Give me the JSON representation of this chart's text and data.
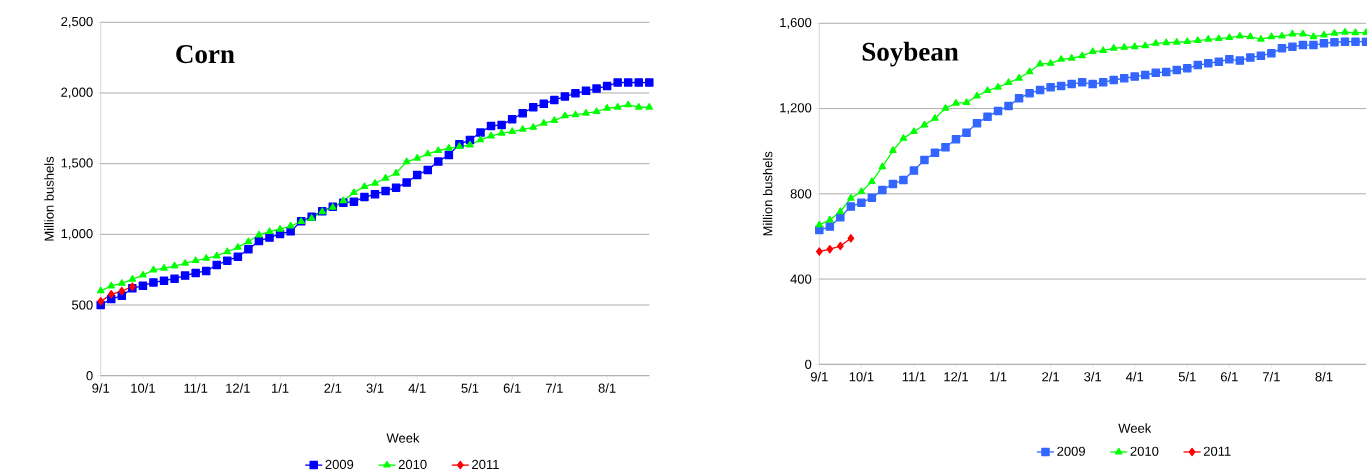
{
  "chart_data": [
    {
      "type": "line",
      "title": "Corn",
      "xlabel": "Week",
      "ylabel": "Million bushels",
      "categories": [
        "9/1",
        null,
        null,
        null,
        "10/1",
        null,
        null,
        null,
        null,
        "11/1",
        null,
        null,
        null,
        "12/1",
        null,
        null,
        null,
        "1/1",
        null,
        null,
        null,
        null,
        "2/1",
        null,
        null,
        null,
        "3/1",
        null,
        null,
        null,
        "4/1",
        null,
        null,
        null,
        null,
        "5/1",
        null,
        null,
        null,
        "6/1",
        null,
        null,
        null,
        "7/1",
        null,
        null,
        null,
        null,
        "8/1",
        null,
        null,
        null,
        null
      ],
      "ylim": [
        0,
        2500
      ],
      "yticks": [
        0,
        500,
        {
          "value": 1000,
          "label": "1,000"
        },
        {
          "value": 1500,
          "label": "1,500"
        },
        {
          "value": 2000,
          "label": "2,000"
        },
        {
          "value": 2500,
          "label": "2,500"
        }
      ],
      "grid": "y",
      "legend": "bottom",
      "series": [
        {
          "name": "2009",
          "color": "#0000ff",
          "marker": "square",
          "values": [
            500,
            542,
            566,
            618,
            637,
            660,
            672,
            686,
            708,
            727,
            741,
            783,
            814,
            842,
            894,
            953,
            977,
            1003,
            1021,
            1092,
            1125,
            1163,
            1196,
            1224,
            1231,
            1264,
            1283,
            1307,
            1330,
            1366,
            1420,
            1456,
            1515,
            1562,
            1637,
            1668,
            1720,
            1767,
            1774,
            1814,
            1857,
            1899,
            1923,
            1951,
            1975,
            1998,
            2015,
            2031,
            2050,
            2074,
            2074,
            2074,
            2074
          ]
        },
        {
          "name": "2010",
          "color": "#00ff00",
          "marker": "triangle",
          "values": [
            600,
            635,
            653,
            682,
            712,
            748,
            760,
            776,
            795,
            814,
            830,
            847,
            877,
            908,
            948,
            995,
            1019,
            1036,
            1059,
            1090,
            1113,
            1160,
            1191,
            1238,
            1295,
            1338,
            1361,
            1397,
            1432,
            1514,
            1538,
            1569,
            1592,
            1609,
            1621,
            1632,
            1668,
            1696,
            1715,
            1727,
            1743,
            1757,
            1786,
            1805,
            1838,
            1845,
            1857,
            1868,
            1892,
            1899,
            1916,
            1899,
            1899
          ]
        },
        {
          "name": "2011",
          "color": "#ff0000",
          "marker": "diamond",
          "values": [
            526,
            576,
            599,
            630,
            null,
            null,
            null,
            null,
            null,
            null,
            null,
            null,
            null,
            null,
            null,
            null,
            null,
            null,
            null,
            null,
            null,
            null,
            null,
            null,
            null,
            null,
            null,
            null,
            null,
            null,
            null,
            null,
            null,
            null,
            null,
            null,
            null,
            null,
            null,
            null,
            null,
            null,
            null,
            null,
            null,
            null,
            null,
            null,
            null,
            null,
            null,
            null,
            null
          ]
        }
      ]
    },
    {
      "type": "line",
      "title": "Soybean",
      "xlabel": "Week",
      "ylabel": "Million bushels",
      "categories": [
        "9/1",
        null,
        null,
        null,
        "10/1",
        null,
        null,
        null,
        null,
        "11/1",
        null,
        null,
        null,
        "12/1",
        null,
        null,
        null,
        "1/1",
        null,
        null,
        null,
        null,
        "2/1",
        null,
        null,
        null,
        "3/1",
        null,
        null,
        null,
        "4/1",
        null,
        null,
        null,
        null,
        "5/1",
        null,
        null,
        null,
        "6/1",
        null,
        null,
        null,
        "7/1",
        null,
        null,
        null,
        null,
        "8/1",
        null,
        null,
        null,
        null
      ],
      "ylim": [
        0,
        1600
      ],
      "yticks": [
        0,
        400,
        800,
        {
          "value": 1200,
          "label": "1,200"
        },
        {
          "value": 1600,
          "label": "1,600"
        }
      ],
      "grid": "y",
      "legend": "bottom",
      "series": [
        {
          "name": "2009",
          "color": "#3366ff",
          "marker": "square",
          "values": [
            630,
            646,
            690,
            740,
            758,
            782,
            818,
            846,
            865,
            909,
            959,
            993,
            1018,
            1056,
            1087,
            1131,
            1162,
            1189,
            1212,
            1248,
            1272,
            1287,
            1300,
            1306,
            1315,
            1323,
            1315,
            1323,
            1334,
            1342,
            1350,
            1357,
            1368,
            1372,
            1381,
            1389,
            1404,
            1412,
            1420,
            1431,
            1425,
            1439,
            1448,
            1459,
            1483,
            1490,
            1498,
            1498,
            1506,
            1511,
            1514,
            1514,
            1514
          ]
        },
        {
          "name": "2010",
          "color": "#00ff00",
          "marker": "triangle",
          "values": [
            654,
            677,
            716,
            779,
            810,
            857,
            927,
            1003,
            1060,
            1092,
            1123,
            1154,
            1201,
            1225,
            1228,
            1259,
            1284,
            1300,
            1322,
            1342,
            1373,
            1409,
            1412,
            1431,
            1436,
            1447,
            1467,
            1472,
            1483,
            1487,
            1490,
            1494,
            1506,
            1509,
            1511,
            1514,
            1519,
            1525,
            1528,
            1533,
            1540,
            1537,
            1525,
            1537,
            1540,
            1550,
            1550,
            1537,
            1545,
            1553,
            1558,
            1556,
            1556
          ]
        },
        {
          "name": "2011",
          "color": "#ff0000",
          "marker": "diamond",
          "values": [
            529,
            540,
            555,
            591,
            null,
            null,
            null,
            null,
            null,
            null,
            null,
            null,
            null,
            null,
            null,
            null,
            null,
            null,
            null,
            null,
            null,
            null,
            null,
            null,
            null,
            null,
            null,
            null,
            null,
            null,
            null,
            null,
            null,
            null,
            null,
            null,
            null,
            null,
            null,
            null,
            null,
            null,
            null,
            null,
            null,
            null,
            null,
            null,
            null,
            null,
            null,
            null,
            null
          ]
        }
      ]
    }
  ]
}
